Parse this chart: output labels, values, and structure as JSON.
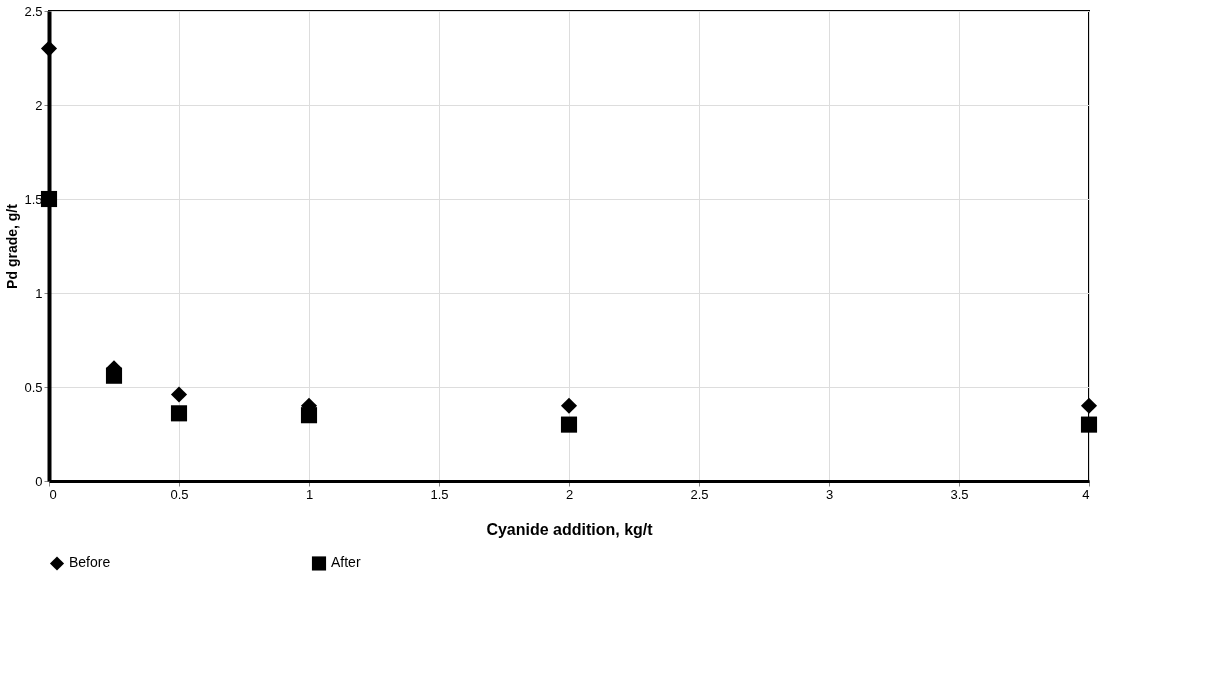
{
  "chart_data": {
    "type": "scatter",
    "xlabel": "Cyanide addition, kg/t",
    "ylabel": "Pd grade, g/t",
    "x": [
      0,
      0.25,
      0.5,
      1,
      2,
      4
    ],
    "series": [
      {
        "name": "Before",
        "color": "#000000",
        "marker": "diamond",
        "values": [
          2.3,
          0.6,
          0.46,
          0.4,
          0.4,
          0.4
        ]
      },
      {
        "name": "After",
        "color": "#000000",
        "marker": "square",
        "values": [
          1.5,
          0.56,
          0.36,
          0.35,
          0.3,
          0.3
        ]
      }
    ],
    "xlim": [
      0,
      4
    ],
    "xticks": [
      0,
      0.5,
      1,
      1.5,
      2,
      2.5,
      3,
      3.5,
      4
    ],
    "ylim": [
      0,
      2.5
    ],
    "yticks": [
      0,
      0.5,
      1,
      1.5,
      2,
      2.5
    ],
    "grid": true,
    "legend": "bottom"
  }
}
